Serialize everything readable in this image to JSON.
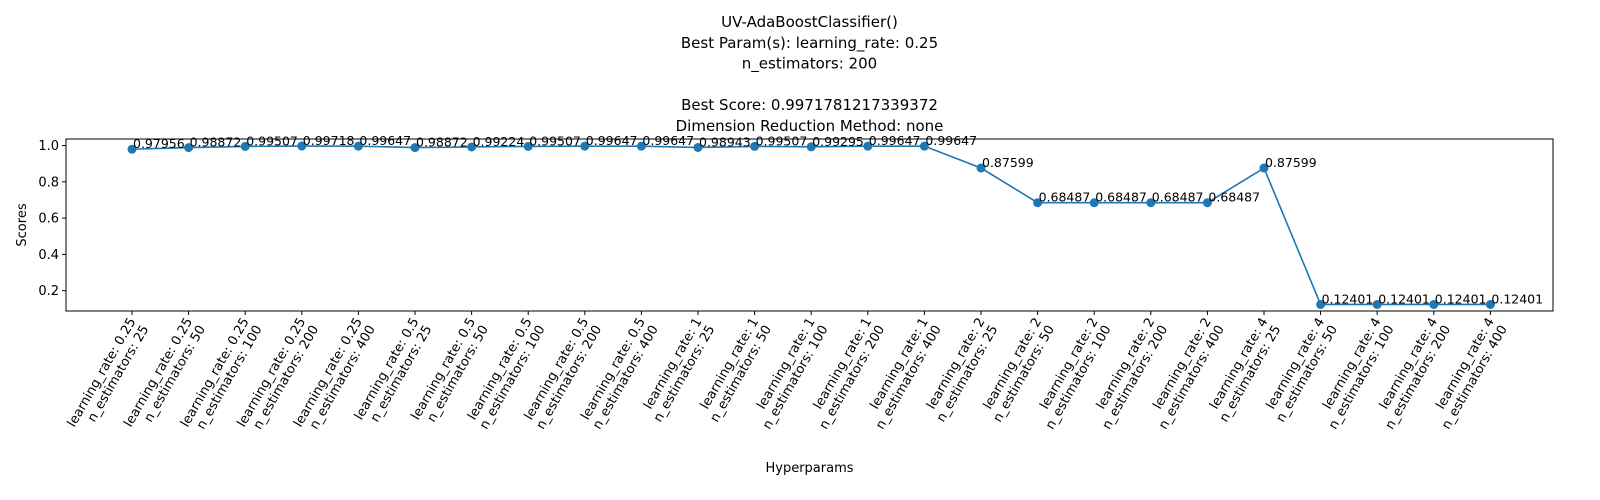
{
  "chart_data": {
    "type": "line",
    "title_lines": [
      "UV-AdaBoostClassifier()",
      "Best Param(s): learning_rate: 0.25",
      "n_estimators: 200",
      "",
      "Best Score: 0.9971781217339372",
      "Dimension Reduction Method: none"
    ],
    "xlabel": "Hyperparams",
    "ylabel": "Scores",
    "ylim": [
      0.088,
      1.036
    ],
    "yticks": [
      0.2,
      0.4,
      0.6,
      0.8,
      1.0
    ],
    "ytick_labels": [
      "0.2",
      "0.4",
      "0.6",
      "0.8",
      "1.0"
    ],
    "grid": false,
    "color": "#1f77b4",
    "categories": [
      [
        "learning_rate: 0.25",
        "n_estimators: 25"
      ],
      [
        "learning_rate: 0.25",
        "n_estimators: 50"
      ],
      [
        "learning_rate: 0.25",
        "n_estimators: 100"
      ],
      [
        "learning_rate: 0.25",
        "n_estimators: 200"
      ],
      [
        "learning_rate: 0.25",
        "n_estimators: 400"
      ],
      [
        "learning_rate: 0.5",
        "n_estimators: 25"
      ],
      [
        "learning_rate: 0.5",
        "n_estimators: 50"
      ],
      [
        "learning_rate: 0.5",
        "n_estimators: 100"
      ],
      [
        "learning_rate: 0.5",
        "n_estimators: 200"
      ],
      [
        "learning_rate: 0.5",
        "n_estimators: 400"
      ],
      [
        "learning_rate: 1",
        "n_estimators: 25"
      ],
      [
        "learning_rate: 1",
        "n_estimators: 50"
      ],
      [
        "learning_rate: 1",
        "n_estimators: 100"
      ],
      [
        "learning_rate: 1",
        "n_estimators: 200"
      ],
      [
        "learning_rate: 1",
        "n_estimators: 400"
      ],
      [
        "learning_rate: 2",
        "n_estimators: 25"
      ],
      [
        "learning_rate: 2",
        "n_estimators: 50"
      ],
      [
        "learning_rate: 2",
        "n_estimators: 100"
      ],
      [
        "learning_rate: 2",
        "n_estimators: 200"
      ],
      [
        "learning_rate: 2",
        "n_estimators: 400"
      ],
      [
        "learning_rate: 4",
        "n_estimators: 25"
      ],
      [
        "learning_rate: 4",
        "n_estimators: 50"
      ],
      [
        "learning_rate: 4",
        "n_estimators: 100"
      ],
      [
        "learning_rate: 4",
        "n_estimators: 200"
      ],
      [
        "learning_rate: 4",
        "n_estimators: 400"
      ]
    ],
    "values": [
      0.97956,
      0.98872,
      0.99507,
      0.99718,
      0.99647,
      0.98872,
      0.99224,
      0.99507,
      0.99647,
      0.99647,
      0.98943,
      0.99507,
      0.99295,
      0.99647,
      0.99647,
      0.87599,
      0.68487,
      0.68487,
      0.68487,
      0.68487,
      0.87599,
      0.12401,
      0.12401,
      0.12401,
      0.12401
    ],
    "labels": [
      "0.97956",
      "0.98872",
      "0.99507",
      "0.99718",
      "0.99647",
      "0.98872",
      "0.99224",
      "0.99507",
      "0.99647",
      "0.99647",
      "0.98943",
      "0.99507",
      "0.99295",
      "0.99647",
      "0.99647",
      "0.87599",
      "0.68487",
      "0.68487",
      "0.68487",
      "0.68487",
      "0.87599",
      "0.12401",
      "0.12401",
      "0.12401",
      "0.12401"
    ]
  }
}
